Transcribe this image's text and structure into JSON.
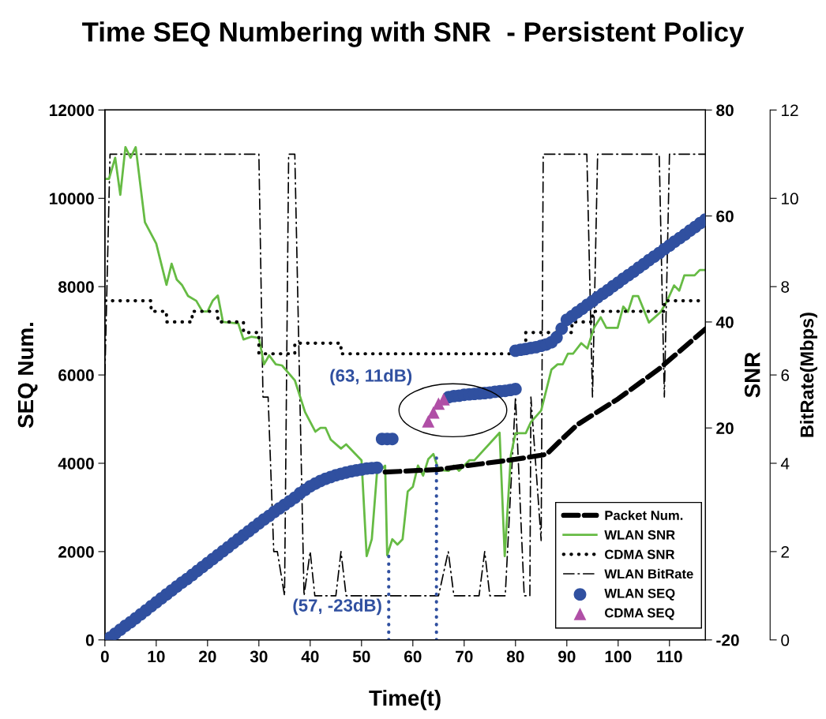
{
  "chart_data": {
    "type": "line",
    "title": "Time SEQ Numbering with SNR  - Persistent Policy",
    "xlabel": "Time(t)",
    "ylabel": "SEQ Num.",
    "y2label": "SNR",
    "y3label": "BitRate(Mbps)",
    "xlim": [
      0,
      117
    ],
    "xticks": [
      0,
      10,
      20,
      30,
      40,
      50,
      60,
      70,
      80,
      90,
      100,
      110
    ],
    "ylim": [
      0,
      12000
    ],
    "yticks": [
      0,
      2000,
      4000,
      6000,
      8000,
      10000,
      12000
    ],
    "y2lim": [
      -20,
      80
    ],
    "y2ticks": [
      -20,
      20,
      40,
      60,
      80
    ],
    "y3lim": [
      0,
      12
    ],
    "y3ticks": [
      0,
      2,
      4,
      6,
      8,
      10,
      12
    ],
    "grid": false,
    "legend": "bottom right",
    "annotations": [
      {
        "text": "(57, -23dB)",
        "x": 55.3,
        "y": 500
      },
      "(63, 11dB)"
    ],
    "series": [
      {
        "name": "Packet Num.",
        "color": "#000000",
        "line_style": "dashed",
        "axis": "y",
        "x": [
          54.6,
          65,
          80,
          86,
          89,
          92,
          100,
          108,
          117
        ],
        "values": [
          3800,
          3860,
          4090,
          4200,
          4540,
          4870,
          5460,
          6140,
          7040
        ]
      },
      {
        "name": "WLAN SNR",
        "color": "#66bb44",
        "line_style": "solid",
        "axis": "y2",
        "x": [
          0,
          0.8,
          2,
          3,
          4,
          5,
          6,
          7.8,
          10,
          12,
          13,
          14,
          15,
          16.2,
          17.8,
          19,
          20,
          21,
          22,
          23,
          26,
          27,
          28.5,
          30,
          31,
          32,
          33.3,
          34.5,
          37,
          39,
          41,
          42,
          43,
          44,
          46,
          47,
          50,
          51,
          52,
          53,
          54.6,
          55,
          56,
          57,
          58,
          59,
          60,
          61,
          62,
          63,
          64,
          65,
          67,
          68,
          69,
          71,
          72,
          76.9,
          77.9,
          79.1,
          80,
          82,
          83,
          85,
          87,
          88.2,
          89.2,
          90.2,
          91.2,
          92.8,
          94,
          95.3,
          96.6,
          97.7,
          99.9,
          101,
          101.9,
          102.9,
          103.9,
          106,
          108.3,
          109.5,
          110.9,
          111.9,
          112.9,
          114.9,
          115.9,
          117
        ],
        "values": [
          67,
          67,
          71,
          64,
          73,
          71,
          73,
          58.8,
          54.8,
          47,
          51,
          48,
          47,
          44.9,
          44,
          42,
          42,
          44,
          45,
          40,
          39.7,
          36.7,
          37.2,
          37,
          32,
          33.7,
          32,
          31.8,
          29,
          23,
          19.3,
          20,
          20,
          17.8,
          16.1,
          16.9,
          13.9,
          -4.2,
          -1,
          11.4,
          12.9,
          -4,
          -1,
          -2,
          -1,
          8,
          8.9,
          12.9,
          11,
          14.1,
          15.1,
          12.1,
          11.9,
          12.9,
          11.9,
          13.9,
          13.9,
          19.1,
          -4.2,
          14.9,
          19,
          19,
          21.1,
          23.3,
          31,
          32,
          32,
          34,
          34,
          36,
          35,
          38.9,
          40.9,
          38.9,
          38.9,
          42.9,
          41.9,
          44.9,
          44.9,
          39.9,
          41.9,
          43.9,
          46.9,
          45.9,
          48.8,
          48.8,
          49.8,
          49.8
        ]
      },
      {
        "name": "CDMA SNR",
        "type": "step",
        "color": "#000000",
        "line_style": "dotted",
        "axis": "y2",
        "x": [
          0,
          9,
          12,
          17,
          22,
          27,
          30,
          37,
          46,
          82,
          91,
          95,
          109,
          117
        ],
        "values": [
          44,
          42,
          40,
          42,
          40,
          38,
          34,
          36,
          34,
          38,
          40,
          42,
          44,
          44
        ]
      },
      {
        "name": "WLAN BitRate",
        "color": "#000000",
        "line_style": "dashdot",
        "axis": "y3",
        "x": [
          0,
          1,
          30,
          30.8,
          31.8,
          32.9,
          33.6,
          35,
          35.8,
          37,
          38.8,
          40,
          40.9,
          45,
          46,
          47,
          65,
          66.9,
          68,
          72.9,
          74,
          75,
          78,
          80,
          81.7,
          82.8,
          83,
          85,
          85.4,
          93.9,
          95,
          96,
          108,
          109,
          110,
          117
        ],
        "values": [
          6,
          11,
          11,
          5.5,
          5.5,
          2,
          2,
          1,
          11,
          11,
          1,
          2,
          1,
          1,
          2,
          1,
          1,
          2,
          1,
          1,
          2,
          1,
          1,
          5.5,
          1,
          1,
          5.5,
          2.25,
          11,
          11,
          5.5,
          11,
          11,
          5.5,
          11,
          11
        ]
      },
      {
        "name": "WLAN SEQ",
        "type": "scatter",
        "color": "#3050a0",
        "marker": "circle",
        "axis": "y",
        "x": [
          1,
          2,
          3,
          4,
          5,
          6,
          7,
          8,
          9,
          10,
          11,
          12,
          13,
          14,
          15,
          16,
          17,
          18,
          19,
          20,
          21,
          22,
          23,
          24,
          25,
          26,
          27,
          28,
          29,
          30,
          31,
          32,
          33,
          34,
          35,
          36,
          37,
          38,
          39,
          40,
          41,
          42,
          43,
          44,
          45,
          46,
          47,
          48,
          49,
          50,
          51,
          52,
          53,
          54,
          55,
          56,
          67,
          68,
          69,
          70,
          71,
          72,
          73,
          74,
          75,
          76,
          77,
          78,
          79,
          80,
          80,
          81,
          82,
          83,
          84,
          85,
          86,
          87,
          88,
          89,
          90,
          91,
          92,
          93,
          94,
          95,
          96,
          97,
          98,
          99,
          100,
          101,
          102,
          103,
          104,
          105,
          106,
          107,
          108,
          109,
          110,
          111,
          112,
          113,
          114,
          115,
          116,
          117
        ],
        "values": [
          50,
          140,
          230,
          320,
          400,
          490,
          580,
          670,
          760,
          850,
          940,
          1030,
          1120,
          1210,
          1300,
          1380,
          1470,
          1560,
          1650,
          1740,
          1830,
          1920,
          2010,
          2100,
          2190,
          2280,
          2370,
          2460,
          2550,
          2640,
          2730,
          2810,
          2900,
          2980,
          3060,
          3140,
          3220,
          3320,
          3400,
          3480,
          3540,
          3600,
          3650,
          3690,
          3730,
          3760,
          3790,
          3820,
          3840,
          3860,
          3880,
          3890,
          3900,
          4550,
          4550,
          4550,
          5500,
          5520,
          5530,
          5550,
          5560,
          5570,
          5580,
          5590,
          5600,
          5620,
          5630,
          5640,
          5660,
          5680,
          6550,
          6570,
          6590,
          6610,
          6630,
          6660,
          6690,
          6740,
          6850,
          7050,
          7250,
          7330,
          7420,
          7500,
          7590,
          7670,
          7760,
          7840,
          7920,
          8010,
          8090,
          8180,
          8260,
          8340,
          8430,
          8510,
          8600,
          8680,
          8760,
          8850,
          8930,
          9020,
          9100,
          9180,
          9270,
          9350,
          9440,
          9520
        ]
      },
      {
        "name": "CDMA SEQ",
        "type": "scatter",
        "color": "#b04fa6",
        "marker": "triangle",
        "axis": "y",
        "x": [
          63,
          64,
          65,
          66
        ],
        "values": [
          4950,
          5150,
          5350,
          5450
        ]
      },
      {
        "color": "#3050a0",
        "line_style": "dotted",
        "axis": "y2",
        "x": [
          55.3,
          55.3
        ],
        "values": [
          -20,
          -3.3
        ]
      },
      {
        "color": "#3050a0",
        "line_style": "dotted",
        "axis": "y2",
        "x": [
          64.6,
          64.6
        ],
        "values": [
          -20,
          14.9
        ]
      }
    ]
  }
}
